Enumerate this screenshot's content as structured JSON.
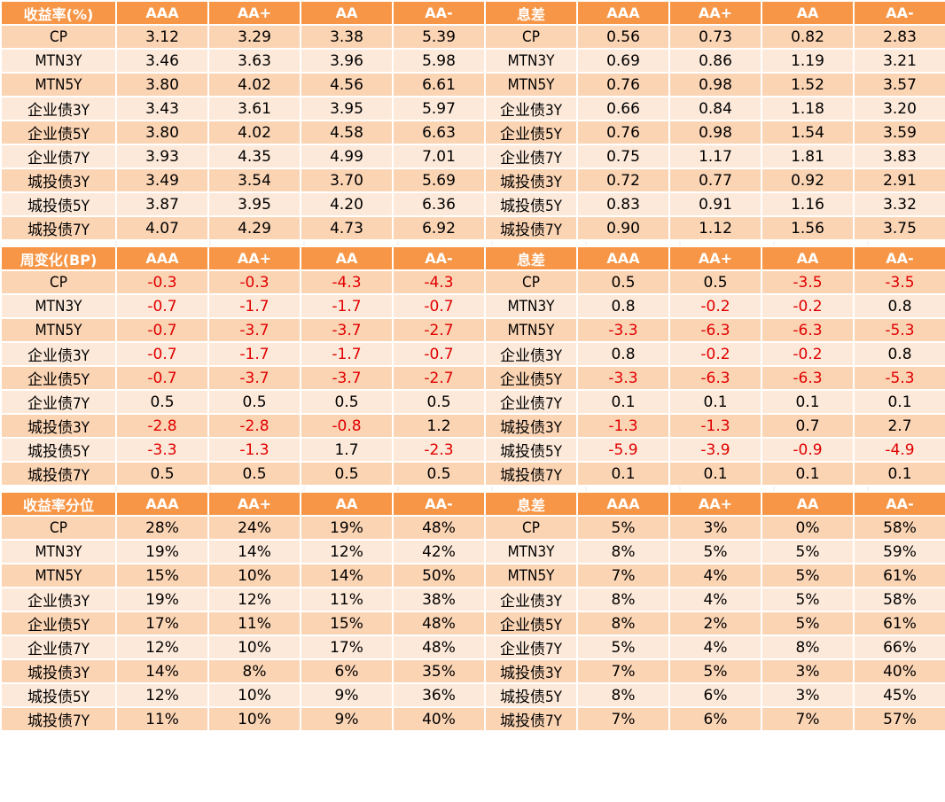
{
  "colors": {
    "header_bg": "#F79646",
    "row_odd": "#FBD4B4",
    "row_even": "#FDE9D9",
    "negative": "#E00000"
  },
  "tables": [
    {
      "header": [
        "收益率(%)",
        "AAA",
        "AA+",
        "AA",
        "AA-",
        "息差",
        "AAA",
        "AA+",
        "AA",
        "AA-"
      ],
      "rows": [
        [
          "CP",
          "3.12",
          "3.29",
          "3.38",
          "5.39",
          "CP",
          "0.56",
          "0.73",
          "0.82",
          "2.83"
        ],
        [
          "MTN3Y",
          "3.46",
          "3.63",
          "3.96",
          "5.98",
          "MTN3Y",
          "0.69",
          "0.86",
          "1.19",
          "3.21"
        ],
        [
          "MTN5Y",
          "3.80",
          "4.02",
          "4.56",
          "6.61",
          "MTN5Y",
          "0.76",
          "0.98",
          "1.52",
          "3.57"
        ],
        [
          "企业债3Y",
          "3.43",
          "3.61",
          "3.95",
          "5.97",
          "企业债3Y",
          "0.66",
          "0.84",
          "1.18",
          "3.20"
        ],
        [
          "企业债5Y",
          "3.80",
          "4.02",
          "4.58",
          "6.63",
          "企业债5Y",
          "0.76",
          "0.98",
          "1.54",
          "3.59"
        ],
        [
          "企业债7Y",
          "3.93",
          "4.35",
          "4.99",
          "7.01",
          "企业债7Y",
          "0.75",
          "1.17",
          "1.81",
          "3.83"
        ],
        [
          "城投债3Y",
          "3.49",
          "3.54",
          "3.70",
          "5.69",
          "城投债3Y",
          "0.72",
          "0.77",
          "0.92",
          "2.91"
        ],
        [
          "城投债5Y",
          "3.87",
          "3.95",
          "4.20",
          "6.36",
          "城投债5Y",
          "0.83",
          "0.91",
          "1.16",
          "3.32"
        ],
        [
          "城投债7Y",
          "4.07",
          "4.29",
          "4.73",
          "6.92",
          "城投债7Y",
          "0.90",
          "1.12",
          "1.56",
          "3.75"
        ]
      ]
    },
    {
      "header": [
        "周变化(BP)",
        "AAA",
        "AA+",
        "AA",
        "AA-",
        "息差",
        "AAA",
        "AA+",
        "AA",
        "AA-"
      ],
      "rows": [
        [
          "CP",
          "-0.3",
          "-0.3",
          "-4.3",
          "-4.3",
          "CP",
          "0.5",
          "0.5",
          "-3.5",
          "-3.5"
        ],
        [
          "MTN3Y",
          "-0.7",
          "-1.7",
          "-1.7",
          "-0.7",
          "MTN3Y",
          "0.8",
          "-0.2",
          "-0.2",
          "0.8"
        ],
        [
          "MTN5Y",
          "-0.7",
          "-3.7",
          "-3.7",
          "-2.7",
          "MTN5Y",
          "-3.3",
          "-6.3",
          "-6.3",
          "-5.3"
        ],
        [
          "企业债3Y",
          "-0.7",
          "-1.7",
          "-1.7",
          "-0.7",
          "企业债3Y",
          "0.8",
          "-0.2",
          "-0.2",
          "0.8"
        ],
        [
          "企业债5Y",
          "-0.7",
          "-3.7",
          "-3.7",
          "-2.7",
          "企业债5Y",
          "-3.3",
          "-6.3",
          "-6.3",
          "-5.3"
        ],
        [
          "企业债7Y",
          "0.5",
          "0.5",
          "0.5",
          "0.5",
          "企业债7Y",
          "0.1",
          "0.1",
          "0.1",
          "0.1"
        ],
        [
          "城投债3Y",
          "-2.8",
          "-2.8",
          "-0.8",
          "1.2",
          "城投债3Y",
          "-1.3",
          "-1.3",
          "0.7",
          "2.7"
        ],
        [
          "城投债5Y",
          "-3.3",
          "-1.3",
          "1.7",
          "-2.3",
          "城投债5Y",
          "-5.9",
          "-3.9",
          "-0.9",
          "-4.9"
        ],
        [
          "城投债7Y",
          "0.5",
          "0.5",
          "0.5",
          "0.5",
          "城投债7Y",
          "0.1",
          "0.1",
          "0.1",
          "0.1"
        ]
      ]
    },
    {
      "header": [
        "收益率分位",
        "AAA",
        "AA+",
        "AA",
        "AA-",
        "息差",
        "AAA",
        "AA+",
        "AA",
        "AA-"
      ],
      "rows": [
        [
          "CP",
          "28%",
          "24%",
          "19%",
          "48%",
          "CP",
          "5%",
          "3%",
          "0%",
          "58%"
        ],
        [
          "MTN3Y",
          "19%",
          "14%",
          "12%",
          "42%",
          "MTN3Y",
          "8%",
          "5%",
          "5%",
          "59%"
        ],
        [
          "MTN5Y",
          "15%",
          "10%",
          "14%",
          "50%",
          "MTN5Y",
          "7%",
          "4%",
          "5%",
          "61%"
        ],
        [
          "企业债3Y",
          "19%",
          "12%",
          "11%",
          "38%",
          "企业债3Y",
          "8%",
          "4%",
          "5%",
          "58%"
        ],
        [
          "企业债5Y",
          "17%",
          "11%",
          "15%",
          "48%",
          "企业债5Y",
          "8%",
          "2%",
          "5%",
          "61%"
        ],
        [
          "企业债7Y",
          "12%",
          "10%",
          "17%",
          "48%",
          "企业债7Y",
          "5%",
          "4%",
          "8%",
          "66%"
        ],
        [
          "城投债3Y",
          "14%",
          "8%",
          "6%",
          "35%",
          "城投债3Y",
          "7%",
          "5%",
          "3%",
          "40%"
        ],
        [
          "城投债5Y",
          "12%",
          "10%",
          "9%",
          "36%",
          "城投债5Y",
          "8%",
          "6%",
          "3%",
          "45%"
        ],
        [
          "城投债7Y",
          "11%",
          "10%",
          "9%",
          "40%",
          "城投债7Y",
          "7%",
          "6%",
          "7%",
          "57%"
        ]
      ]
    }
  ]
}
